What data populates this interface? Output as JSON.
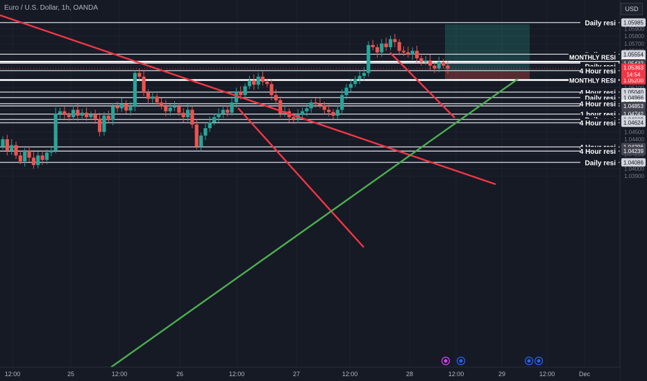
{
  "header": {
    "title": "Euro / U.S. Dollar, 1h, OANDA",
    "currency_button": "USD"
  },
  "chart_data": {
    "type": "candlestick",
    "symbol": "EURUSD",
    "interval": "1h",
    "ylim": [
      1.0388,
      1.0604
    ],
    "x_ticks": [
      "12:00",
      "25",
      "12:00",
      "26",
      "12:00",
      "27",
      "12:00",
      "28",
      "12:00",
      "29",
      "12:00",
      "Dec"
    ],
    "price_ticks": [
      1.059,
      1.058,
      1.057,
      1.056,
      1.055,
      1.054,
      1.053,
      1.052,
      1.051,
      1.05,
      1.049,
      1.048,
      1.047,
      1.046,
      1.045,
      1.044,
      1.043,
      1.042,
      1.041,
      1.04,
      1.039
    ],
    "current_price": {
      "value": "1.05363",
      "countdown": "14:54"
    },
    "levels": [
      {
        "label": "Daily resi",
        "price": "1.05985",
        "tag": "light"
      },
      {
        "label": "Daily resi",
        "price": "1.05554",
        "tag": "light"
      },
      {
        "label": "MONTHLY RESI",
        "price": "1.05453",
        "tag": "white"
      },
      {
        "label": "Daily resi",
        "price": "1.05432",
        "tag": "dark"
      },
      {
        "label": "4 Hour resi",
        "price": "1.05332",
        "tag": "dark"
      },
      {
        "label": "MONTHLY RESI",
        "price": "1.05204",
        "tag": "white"
      },
      {
        "label": "4 Hour resi",
        "price": "1.05040",
        "tag": "light"
      },
      {
        "label": "Daily resi",
        "price": "1.04966",
        "tag": "light"
      },
      {
        "label": "4 Hour resi",
        "price": "1.04883",
        "tag": "white"
      },
      {
        "label": "",
        "price": "1.04853",
        "tag": "dark"
      },
      {
        "label": "1 hour resi",
        "price": "1.04742",
        "tag": "dark"
      },
      {
        "label": "Daily resi",
        "price": "1.04669",
        "tag": "light"
      },
      {
        "label": "4 Hour resi",
        "price": "1.04624",
        "tag": "light"
      },
      {
        "label": "4 Hour resi",
        "price": "1.04296",
        "tag": "dark"
      },
      {
        "label": "4 Hour resi",
        "price": "1.04239",
        "tag": "dark"
      },
      {
        "label": "Daily resi",
        "price": "1.04086",
        "tag": "light"
      }
    ],
    "extra_price_tags": [
      {
        "price": "1.05329",
        "tag": "dark"
      },
      {
        "price": "1.05200",
        "tag": "red"
      }
    ],
    "position": {
      "entry": 1.0532,
      "target": 1.0596,
      "stop": 1.0521
    },
    "colors": {
      "up": "#26a69a",
      "down": "#ef5350",
      "background": "#161a25",
      "trendline_red": "#f23645",
      "trendline_green": "#4caf50"
    }
  }
}
